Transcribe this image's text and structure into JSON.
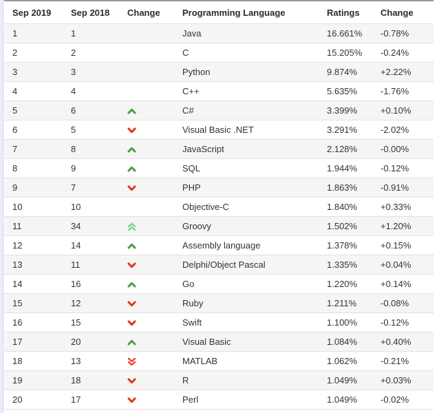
{
  "table": {
    "headers": [
      "Sep 2019",
      "Sep 2018",
      "Change",
      "Programming Language",
      "Ratings",
      "Change"
    ],
    "rows": [
      {
        "rank_2019": "1",
        "rank_2018": "1",
        "change": "none",
        "language": "Java",
        "rating": "16.661%",
        "delta": "-0.78%"
      },
      {
        "rank_2019": "2",
        "rank_2018": "2",
        "change": "none",
        "language": "C",
        "rating": "15.205%",
        "delta": "-0.24%"
      },
      {
        "rank_2019": "3",
        "rank_2018": "3",
        "change": "none",
        "language": "Python",
        "rating": "9.874%",
        "delta": "+2.22%"
      },
      {
        "rank_2019": "4",
        "rank_2018": "4",
        "change": "none",
        "language": "C++",
        "rating": "5.635%",
        "delta": "-1.76%"
      },
      {
        "rank_2019": "5",
        "rank_2018": "6",
        "change": "up",
        "language": "C#",
        "rating": "3.399%",
        "delta": "+0.10%"
      },
      {
        "rank_2019": "6",
        "rank_2018": "5",
        "change": "down",
        "language": "Visual Basic .NET",
        "rating": "3.291%",
        "delta": "-2.02%"
      },
      {
        "rank_2019": "7",
        "rank_2018": "8",
        "change": "up",
        "language": "JavaScript",
        "rating": "2.128%",
        "delta": "-0.00%"
      },
      {
        "rank_2019": "8",
        "rank_2018": "9",
        "change": "up",
        "language": "SQL",
        "rating": "1.944%",
        "delta": "-0.12%"
      },
      {
        "rank_2019": "9",
        "rank_2018": "7",
        "change": "down",
        "language": "PHP",
        "rating": "1.863%",
        "delta": "-0.91%"
      },
      {
        "rank_2019": "10",
        "rank_2018": "10",
        "change": "none",
        "language": "Objective-C",
        "rating": "1.840%",
        "delta": "+0.33%"
      },
      {
        "rank_2019": "11",
        "rank_2018": "34",
        "change": "double-up",
        "language": "Groovy",
        "rating": "1.502%",
        "delta": "+1.20%"
      },
      {
        "rank_2019": "12",
        "rank_2018": "14",
        "change": "up",
        "language": "Assembly language",
        "rating": "1.378%",
        "delta": "+0.15%"
      },
      {
        "rank_2019": "13",
        "rank_2018": "11",
        "change": "down",
        "language": "Delphi/Object Pascal",
        "rating": "1.335%",
        "delta": "+0.04%"
      },
      {
        "rank_2019": "14",
        "rank_2018": "16",
        "change": "up",
        "language": "Go",
        "rating": "1.220%",
        "delta": "+0.14%"
      },
      {
        "rank_2019": "15",
        "rank_2018": "12",
        "change": "down",
        "language": "Ruby",
        "rating": "1.211%",
        "delta": "-0.08%"
      },
      {
        "rank_2019": "16",
        "rank_2018": "15",
        "change": "down",
        "language": "Swift",
        "rating": "1.100%",
        "delta": "-0.12%"
      },
      {
        "rank_2019": "17",
        "rank_2018": "20",
        "change": "up",
        "language": "Visual Basic",
        "rating": "1.084%",
        "delta": "+0.40%"
      },
      {
        "rank_2019": "18",
        "rank_2018": "13",
        "change": "double-down",
        "language": "MATLAB",
        "rating": "1.062%",
        "delta": "-0.21%"
      },
      {
        "rank_2019": "19",
        "rank_2018": "18",
        "change": "down",
        "language": "R",
        "rating": "1.049%",
        "delta": "+0.03%"
      },
      {
        "rank_2019": "20",
        "rank_2018": "17",
        "change": "down",
        "language": "Perl",
        "rating": "1.049%",
        "delta": "-0.02%"
      }
    ]
  },
  "icons": {
    "up": "up-arrow-icon",
    "down": "down-arrow-icon",
    "double-up": "double-up-arrow-icon",
    "double-down": "double-down-arrow-icon"
  },
  "colors": {
    "up_arrow": "#45a145",
    "double_up_arrow": "#7cd47c",
    "down_arrow": "#e2361c",
    "double_down_arrow": "#e8432a",
    "header_top_border": "#999999",
    "row_separator": "#e1e1e1",
    "stripe_row_bg": "#f5f5f5",
    "text": "#333333",
    "page_edge_bg": "#e9eef8",
    "page_edge_border": "#c9d4e8"
  }
}
